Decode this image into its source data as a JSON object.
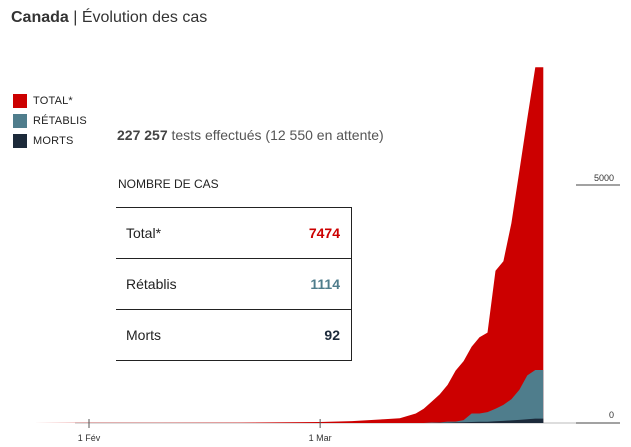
{
  "title": {
    "country": "Canada",
    "separator": "|",
    "subtitle": "Évolution des cas"
  },
  "legend": [
    {
      "label": "TOTAL*",
      "color": "#cc0000"
    },
    {
      "label": "RÉTABLIS",
      "color": "#4f7d8c"
    },
    {
      "label": "MORTS",
      "color": "#1c2a3a"
    }
  ],
  "tests": {
    "count": "227 257",
    "text": " tests effectués (12 550 en attente)"
  },
  "summary_table": {
    "title": "NOMBRE DE CAS",
    "rows": [
      {
        "label": "Total*",
        "value": "7474",
        "color": "#cc0000"
      },
      {
        "label": "Rétablis",
        "value": "1114",
        "color": "#4f7d8c"
      },
      {
        "label": "Morts",
        "value": "92",
        "color": "#1c2a3a"
      }
    ]
  },
  "chart_data": {
    "type": "area",
    "x_ticks": [
      "1 Fév",
      "1 Mar"
    ],
    "y_ticks": [
      "0",
      "5000"
    ],
    "ylim": [
      0,
      7474
    ],
    "x": [
      "Jan 25",
      "Feb 1",
      "Feb 10",
      "Feb 20",
      "Mar 1",
      "Mar 5",
      "Mar 9",
      "Mar 11",
      "Mar 13",
      "Mar 14",
      "Mar 15",
      "Mar 16",
      "Mar 17",
      "Mar 18",
      "Mar 19",
      "Mar 20",
      "Mar 21",
      "Mar 22",
      "Mar 23",
      "Mar 24",
      "Mar 25",
      "Mar 26",
      "Mar 27",
      "Mar 28",
      "Mar 29"
    ],
    "series": [
      {
        "name": "TOTAL*",
        "color": "#cc0000",
        "values": [
          0,
          4,
          7,
          8,
          20,
          40,
          80,
          100,
          200,
          300,
          450,
          600,
          800,
          1100,
          1300,
          1600,
          1800,
          1900,
          3200,
          3400,
          4200,
          5300,
          6400,
          7474,
          7474
        ]
      },
      {
        "name": "RÉTABLIS",
        "color": "#4f7d8c",
        "values": [
          0,
          0,
          0,
          0,
          0,
          0,
          0,
          0,
          0,
          0,
          10,
          10,
          30,
          30,
          60,
          200,
          200,
          230,
          300,
          380,
          500,
          700,
          1000,
          1114,
          1114
        ]
      },
      {
        "name": "MORTS",
        "color": "#1c2a3a",
        "values": [
          0,
          0,
          0,
          0,
          0,
          0,
          0,
          0,
          0,
          0,
          1,
          4,
          8,
          12,
          16,
          20,
          25,
          28,
          35,
          45,
          55,
          65,
          80,
          92,
          92
        ]
      }
    ]
  }
}
